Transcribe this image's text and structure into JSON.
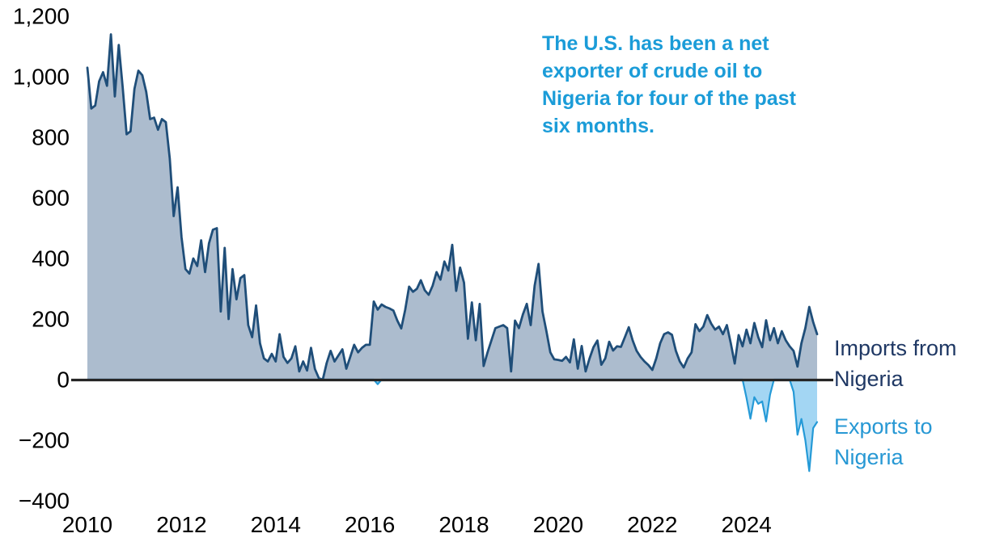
{
  "annotation": {
    "text": "The U.S. has been a net exporter of crude oil to Nigeria for four of the past six months."
  },
  "series_labels": {
    "imports": "Imports from Nigeria",
    "exports": "Exports to Nigeria"
  },
  "colors": {
    "imports_line": "#1F4E79",
    "imports_fill": "#ACBCCE",
    "exports_line": "#259AD7",
    "exports_fill": "#A3D6F3",
    "annotation_text": "#1B9CD8",
    "imports_label": "#1F3864",
    "exports_label": "#2798D4",
    "axis_line": "#262626",
    "tick_text": "#000000"
  },
  "chart_data": {
    "type": "area",
    "title": "",
    "frequency": "monthly",
    "x_start": "2010-01",
    "x_end": "2025-07",
    "x_tick_labels": [
      "2010",
      "2012",
      "2014",
      "2016",
      "2018",
      "2020",
      "2022",
      "2024"
    ],
    "y_tick_values": [
      1200,
      1000,
      800,
      600,
      400,
      200,
      0,
      -200,
      -400
    ],
    "y_tick_labels": [
      "1,200",
      "1,000",
      "800",
      "600",
      "400",
      "200",
      "0",
      "−200",
      "−400"
    ],
    "ylim": [
      -400,
      1200
    ],
    "grid": false,
    "legend_position": "right-inline-labels",
    "annotation": "The U.S. has been a net exporter of crude oil to Nigeria for four of the past six months.",
    "series": [
      {
        "name": "Imports from Nigeria",
        "values": [
          1030,
          895,
          905,
          985,
          1015,
          970,
          1140,
          935,
          1105,
          965,
          810,
          820,
          960,
          1020,
          1005,
          950,
          860,
          865,
          825,
          860,
          850,
          730,
          540,
          635,
          470,
          365,
          350,
          400,
          375,
          460,
          355,
          450,
          495,
          500,
          225,
          435,
          200,
          365,
          265,
          335,
          345,
          180,
          140,
          245,
          120,
          70,
          60,
          85,
          60,
          150,
          75,
          55,
          70,
          110,
          27,
          60,
          30,
          105,
          35,
          5,
          0,
          55,
          95,
          60,
          80,
          100,
          36,
          75,
          115,
          90,
          105,
          115,
          115,
          258,
          231,
          248,
          240,
          235,
          228,
          195,
          169,
          230,
          307,
          290,
          300,
          328,
          295,
          280,
          310,
          355,
          330,
          390,
          360,
          445,
          293,
          370,
          320,
          135,
          255,
          130,
          250,
          45,
          90,
          130,
          170,
          175,
          180,
          170,
          27,
          195,
          170,
          215,
          250,
          180,
          310,
          382,
          225,
          160,
          90,
          67,
          65,
          62,
          75,
          57,
          133,
          36,
          111,
          27,
          70,
          107,
          129,
          49,
          70,
          125,
          96,
          110,
          108,
          140,
          173,
          129,
          95,
          75,
          60,
          48,
          32,
          70,
          120,
          150,
          156,
          148,
          95,
          60,
          40,
          70,
          90,
          183,
          160,
          175,
          213,
          185,
          165,
          175,
          150,
          180,
          120,
          53,
          147,
          110,
          165,
          120,
          187,
          140,
          107,
          196,
          130,
          170,
          120,
          160,
          130,
          110,
          95,
          43,
          120,
          170,
          240,
          190,
          150
        ]
      },
      {
        "name": "Exports to Nigeria",
        "values": [
          0,
          0,
          0,
          0,
          0,
          0,
          0,
          0,
          0,
          0,
          0,
          0,
          0,
          0,
          0,
          0,
          0,
          0,
          0,
          0,
          0,
          0,
          0,
          0,
          0,
          0,
          0,
          0,
          0,
          0,
          0,
          0,
          0,
          0,
          0,
          0,
          0,
          0,
          0,
          0,
          0,
          0,
          0,
          0,
          0,
          0,
          0,
          0,
          0,
          0,
          0,
          0,
          0,
          0,
          0,
          0,
          0,
          0,
          0,
          0,
          0,
          0,
          0,
          0,
          0,
          0,
          0,
          0,
          0,
          0,
          0,
          0,
          0,
          0,
          -15,
          0,
          0,
          0,
          0,
          0,
          0,
          0,
          0,
          0,
          0,
          0,
          0,
          0,
          0,
          0,
          0,
          0,
          0,
          0,
          0,
          0,
          0,
          0,
          0,
          0,
          0,
          0,
          0,
          0,
          0,
          0,
          0,
          0,
          0,
          0,
          0,
          0,
          0,
          0,
          0,
          0,
          0,
          0,
          0,
          0,
          0,
          0,
          0,
          0,
          0,
          0,
          0,
          0,
          0,
          0,
          0,
          0,
          0,
          0,
          0,
          0,
          0,
          0,
          0,
          0,
          0,
          0,
          0,
          0,
          0,
          0,
          0,
          0,
          0,
          0,
          0,
          0,
          0,
          0,
          0,
          0,
          0,
          0,
          0,
          0,
          0,
          0,
          0,
          0,
          0,
          0,
          0,
          0,
          -60,
          -129,
          -58,
          -80,
          -72,
          -138,
          -50,
          0,
          0,
          0,
          0,
          0,
          -40,
          -182,
          -130,
          -200,
          -302,
          -160,
          -140
        ]
      }
    ]
  }
}
